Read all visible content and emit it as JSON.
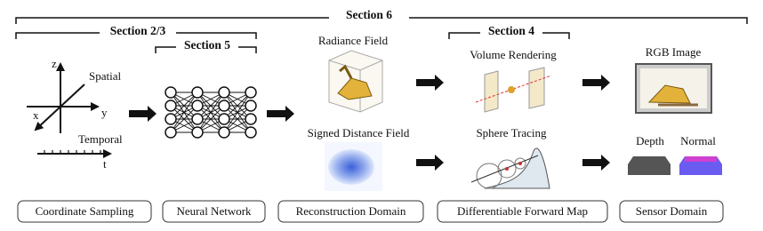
{
  "sections": [
    "Section 6",
    "Section 2/3",
    "Section 5",
    "Section 4"
  ],
  "coordinates": {
    "axes": [
      "z",
      "x",
      "y"
    ],
    "spatial": "Spatial",
    "temporal": "Temporal",
    "time_axis": "t"
  },
  "reconstruction": [
    "Radiance Field",
    "Signed Distance Field"
  ],
  "forward_maps": [
    "Volume Rendering",
    "Sphere Tracing"
  ],
  "sensor": {
    "image": "RGB Image",
    "depth": "Depth",
    "normal": "Normal"
  },
  "stages": [
    "Coordinate Sampling",
    "Neural Network",
    "Reconstruction Domain",
    "Differentiable Forward Map",
    "Sensor Domain"
  ]
}
